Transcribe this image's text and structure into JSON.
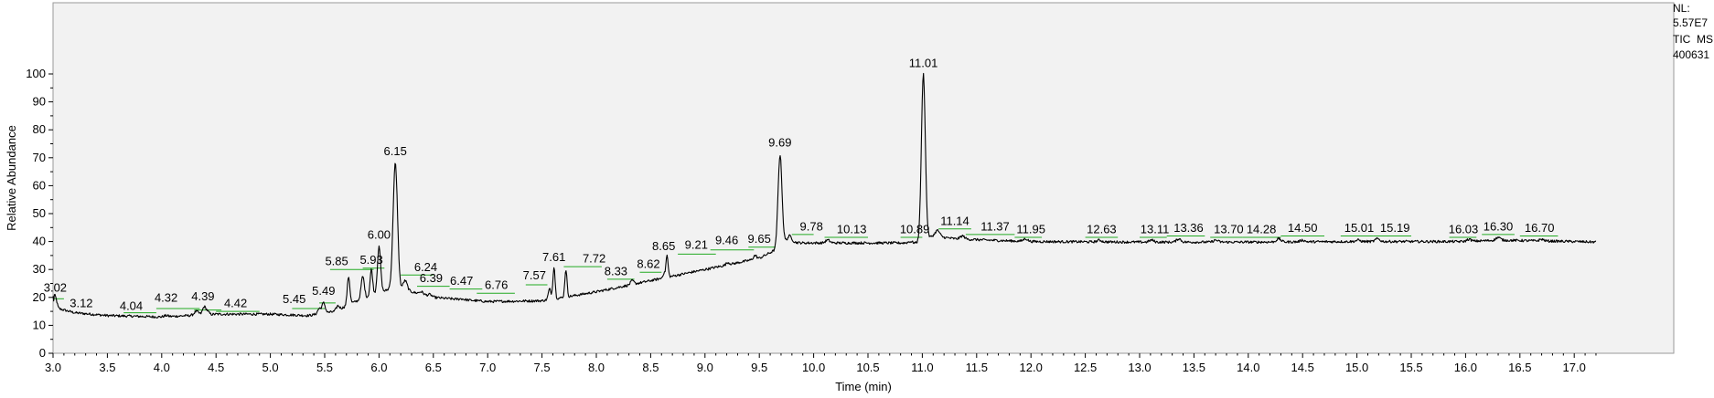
{
  "info": {
    "nl_label": "NL:",
    "nl_value": "5.57E7",
    "trace": "TIC  MS",
    "sample": "400631"
  },
  "chart_data": {
    "type": "line",
    "xlabel": "Time (min)",
    "ylabel": "Relative Abundance",
    "xlim": [
      3.0,
      17.2
    ],
    "ylim": [
      0,
      100
    ],
    "x_ticks": [
      "3.0",
      "3.5",
      "4.0",
      "4.5",
      "5.0",
      "5.5",
      "6.0",
      "6.5",
      "7.0",
      "7.5",
      "8.0",
      "8.5",
      "9.0",
      "9.5",
      "10.0",
      "10.5",
      "11.0",
      "11.5",
      "12.0",
      "12.5",
      "13.0",
      "13.5",
      "14.0",
      "14.5",
      "15.0",
      "15.5",
      "16.0",
      "16.5",
      "17.0"
    ],
    "y_ticks": [
      "0",
      "10",
      "20",
      "30",
      "40",
      "50",
      "60",
      "70",
      "80",
      "90",
      "100"
    ],
    "colors": {
      "trace": "#000000",
      "plot_bg": "#f2f2f2",
      "peak_mark": "#22aa22"
    },
    "baseline": [
      [
        3.0,
        20
      ],
      [
        3.05,
        16
      ],
      [
        3.2,
        14.5
      ],
      [
        3.5,
        13.5
      ],
      [
        4.0,
        13
      ],
      [
        4.5,
        14
      ],
      [
        5.0,
        14
      ],
      [
        5.35,
        13.5
      ],
      [
        5.6,
        15
      ],
      [
        5.75,
        18
      ],
      [
        6.1,
        23
      ],
      [
        6.3,
        22
      ],
      [
        6.5,
        20
      ],
      [
        7.0,
        18.5
      ],
      [
        7.5,
        18.8
      ],
      [
        7.7,
        20
      ],
      [
        8.0,
        22
      ],
      [
        8.5,
        26
      ],
      [
        9.0,
        30
      ],
      [
        9.5,
        34
      ],
      [
        9.65,
        37
      ],
      [
        9.7,
        40
      ],
      [
        9.9,
        39.5
      ],
      [
        10.5,
        39.5
      ],
      [
        10.95,
        39.5
      ],
      [
        11.1,
        42
      ],
      [
        11.3,
        41
      ],
      [
        11.6,
        40.5
      ],
      [
        12.0,
        40
      ],
      [
        13.0,
        39.8
      ],
      [
        14.0,
        39.8
      ],
      [
        15.0,
        40
      ],
      [
        16.0,
        40
      ],
      [
        16.3,
        40.5
      ],
      [
        17.0,
        40
      ],
      [
        17.2,
        39.8
      ]
    ],
    "peaks": [
      {
        "x": 3.02,
        "y": 20.5,
        "w": 0.015
      },
      {
        "x": 3.12,
        "y": 15,
        "w": 0.02
      },
      {
        "x": 4.04,
        "y": 13.5,
        "w": 0.02
      },
      {
        "x": 4.32,
        "y": 15,
        "w": 0.02
      },
      {
        "x": 4.39,
        "y": 16.5,
        "w": 0.015
      },
      {
        "x": 4.42,
        "y": 15,
        "w": 0.015
      },
      {
        "x": 5.45,
        "y": 16,
        "w": 0.015
      },
      {
        "x": 5.49,
        "y": 18,
        "w": 0.015
      },
      {
        "x": 5.62,
        "y": 17,
        "w": 0.015
      },
      {
        "x": 5.72,
        "y": 27.5,
        "w": 0.012
      },
      {
        "x": 5.85,
        "y": 27.5,
        "w": 0.015
      },
      {
        "x": 5.93,
        "y": 30,
        "w": 0.012
      },
      {
        "x": 6.0,
        "y": 38,
        "w": 0.015
      },
      {
        "x": 6.15,
        "y": 68,
        "w": 0.02
      },
      {
        "x": 6.24,
        "y": 26,
        "w": 0.02
      },
      {
        "x": 6.39,
        "y": 22,
        "w": 0.02
      },
      {
        "x": 6.47,
        "y": 21,
        "w": 0.02
      },
      {
        "x": 6.76,
        "y": 19.5,
        "w": 0.02
      },
      {
        "x": 7.57,
        "y": 23,
        "w": 0.012
      },
      {
        "x": 7.61,
        "y": 31,
        "w": 0.01
      },
      {
        "x": 7.72,
        "y": 30,
        "w": 0.01
      },
      {
        "x": 8.33,
        "y": 26,
        "w": 0.015
      },
      {
        "x": 8.62,
        "y": 28.5,
        "w": 0.01
      },
      {
        "x": 8.65,
        "y": 35,
        "w": 0.01
      },
      {
        "x": 9.21,
        "y": 32.5,
        "w": 0.015
      },
      {
        "x": 9.46,
        "y": 35,
        "w": 0.015
      },
      {
        "x": 9.65,
        "y": 37,
        "w": 0.015
      },
      {
        "x": 9.69,
        "y": 71,
        "w": 0.018
      },
      {
        "x": 9.78,
        "y": 42,
        "w": 0.02
      },
      {
        "x": 10.13,
        "y": 40.5,
        "w": 0.02
      },
      {
        "x": 10.89,
        "y": 40,
        "w": 0.02
      },
      {
        "x": 11.01,
        "y": 100,
        "w": 0.018
      },
      {
        "x": 11.14,
        "y": 44,
        "w": 0.02
      },
      {
        "x": 11.37,
        "y": 42,
        "w": 0.02
      },
      {
        "x": 11.95,
        "y": 41,
        "w": 0.02
      },
      {
        "x": 12.63,
        "y": 40.5,
        "w": 0.02
      },
      {
        "x": 13.11,
        "y": 40.5,
        "w": 0.02
      },
      {
        "x": 13.36,
        "y": 41,
        "w": 0.02
      },
      {
        "x": 13.7,
        "y": 40.5,
        "w": 0.02
      },
      {
        "x": 14.28,
        "y": 41,
        "w": 0.02
      },
      {
        "x": 14.5,
        "y": 40.5,
        "w": 0.02
      },
      {
        "x": 15.01,
        "y": 40.5,
        "w": 0.02
      },
      {
        "x": 15.19,
        "y": 41,
        "w": 0.02
      },
      {
        "x": 16.03,
        "y": 40.8,
        "w": 0.02
      },
      {
        "x": 16.3,
        "y": 41.5,
        "w": 0.02
      },
      {
        "x": 16.7,
        "y": 40.8,
        "w": 0.02
      }
    ],
    "annotations": [
      {
        "text": "3.02",
        "x": 3.02,
        "y": 21
      },
      {
        "text": "3.12",
        "x": 3.26,
        "y": 15.5
      },
      {
        "text": "4.04",
        "x": 3.72,
        "y": 14.5
      },
      {
        "text": "4.32",
        "x": 4.04,
        "y": 17.5
      },
      {
        "text": "4.39",
        "x": 4.38,
        "y": 18
      },
      {
        "text": "4.42",
        "x": 4.68,
        "y": 15.5
      },
      {
        "text": "5.45",
        "x": 5.22,
        "y": 17
      },
      {
        "text": "5.49",
        "x": 5.49,
        "y": 20
      },
      {
        "text": "5.85",
        "x": 5.61,
        "y": 30.5
      },
      {
        "text": "5.93",
        "x": 5.93,
        "y": 31
      },
      {
        "text": "6.00",
        "x": 6.0,
        "y": 40
      },
      {
        "text": "6.15",
        "x": 6.15,
        "y": 70
      },
      {
        "text": "6.24",
        "x": 6.43,
        "y": 28.5
      },
      {
        "text": "6.39",
        "x": 6.48,
        "y": 24.5
      },
      {
        "text": "6.47",
        "x": 6.76,
        "y": 23.5
      },
      {
        "text": "6.76",
        "x": 7.08,
        "y": 22
      },
      {
        "text": "7.57",
        "x": 7.43,
        "y": 25.5
      },
      {
        "text": "7.61",
        "x": 7.61,
        "y": 32
      },
      {
        "text": "7.72",
        "x": 7.98,
        "y": 31.5
      },
      {
        "text": "8.33",
        "x": 8.18,
        "y": 27
      },
      {
        "text": "8.62",
        "x": 8.48,
        "y": 29.5
      },
      {
        "text": "8.65",
        "x": 8.62,
        "y": 36
      },
      {
        "text": "9.21",
        "x": 8.92,
        "y": 36.5
      },
      {
        "text": "9.46",
        "x": 9.2,
        "y": 38
      },
      {
        "text": "9.65",
        "x": 9.5,
        "y": 38.5
      },
      {
        "text": "9.69",
        "x": 9.69,
        "y": 73
      },
      {
        "text": "9.78",
        "x": 9.98,
        "y": 43
      },
      {
        "text": "10.13",
        "x": 10.35,
        "y": 42
      },
      {
        "text": "10.89",
        "x": 10.93,
        "y": 42
      },
      {
        "text": "11.01",
        "x": 11.01,
        "y": 101.5
      },
      {
        "text": "11.14",
        "x": 11.3,
        "y": 45
      },
      {
        "text": "11.37",
        "x": 11.67,
        "y": 43
      },
      {
        "text": "11.95",
        "x": 12.0,
        "y": 42
      },
      {
        "text": "12.63",
        "x": 12.65,
        "y": 42
      },
      {
        "text": "13.11",
        "x": 13.14,
        "y": 42
      },
      {
        "text": "13.36",
        "x": 13.45,
        "y": 42.5
      },
      {
        "text": "13.70",
        "x": 13.82,
        "y": 42
      },
      {
        "text": "14.28",
        "x": 14.12,
        "y": 42
      },
      {
        "text": "14.50",
        "x": 14.5,
        "y": 42.5
      },
      {
        "text": "15.01",
        "x": 15.02,
        "y": 42.5
      },
      {
        "text": "15.19",
        "x": 15.35,
        "y": 42.5
      },
      {
        "text": "16.03",
        "x": 15.98,
        "y": 42
      },
      {
        "text": "16.30",
        "x": 16.3,
        "y": 43
      },
      {
        "text": "16.70",
        "x": 16.68,
        "y": 42.5
      }
    ],
    "peak_marks": [
      [
        3.0,
        3.1,
        19.5
      ],
      [
        3.65,
        3.95,
        14.5
      ],
      [
        3.95,
        4.35,
        16
      ],
      [
        4.3,
        4.55,
        15.5
      ],
      [
        4.5,
        4.9,
        15
      ],
      [
        5.2,
        5.5,
        16
      ],
      [
        5.45,
        5.6,
        18
      ],
      [
        5.55,
        5.95,
        30
      ],
      [
        5.85,
        6.05,
        30.5
      ],
      [
        6.2,
        6.5,
        28
      ],
      [
        6.35,
        6.65,
        24
      ],
      [
        6.65,
        6.95,
        23
      ],
      [
        6.9,
        7.25,
        21.5
      ],
      [
        7.35,
        7.55,
        24.5
      ],
      [
        7.7,
        8.05,
        31
      ],
      [
        8.1,
        8.35,
        26.5
      ],
      [
        8.4,
        8.6,
        29
      ],
      [
        8.75,
        9.1,
        35.5
      ],
      [
        9.05,
        9.45,
        37
      ],
      [
        9.4,
        9.65,
        38
      ],
      [
        9.8,
        10.0,
        42.5
      ],
      [
        10.1,
        10.5,
        41.5
      ],
      [
        10.8,
        11.0,
        41.5
      ],
      [
        11.15,
        11.45,
        44.5
      ],
      [
        11.4,
        11.85,
        42.5
      ],
      [
        11.85,
        12.1,
        41.5
      ],
      [
        12.5,
        12.8,
        41.5
      ],
      [
        13.0,
        13.25,
        41.5
      ],
      [
        13.25,
        13.6,
        42
      ],
      [
        13.65,
        13.95,
        41.5
      ],
      [
        13.95,
        14.3,
        41.5
      ],
      [
        14.3,
        14.7,
        42
      ],
      [
        14.85,
        15.15,
        42
      ],
      [
        15.15,
        15.5,
        42
      ],
      [
        15.85,
        16.1,
        41.5
      ],
      [
        16.15,
        16.45,
        42.5
      ],
      [
        16.5,
        16.85,
        42
      ]
    ]
  }
}
